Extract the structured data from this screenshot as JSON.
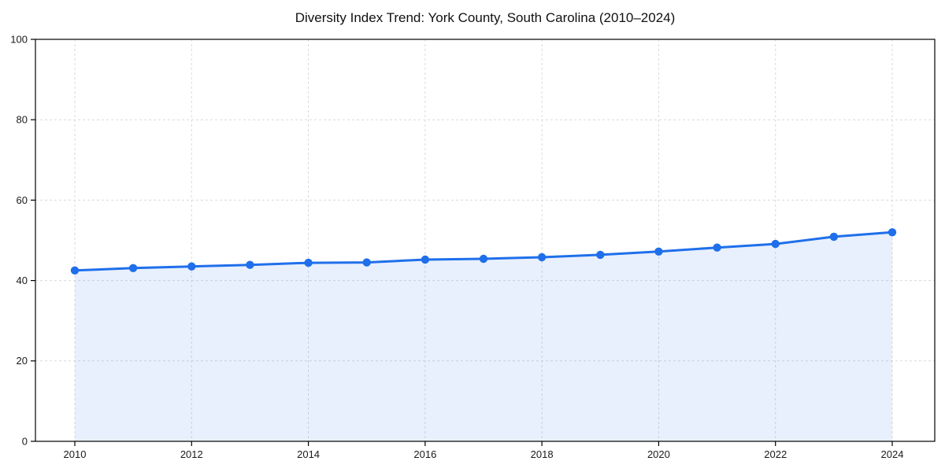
{
  "page": {
    "background": "#ffffff"
  },
  "chart_data": {
    "type": "area",
    "title": "Diversity Index Trend: York County, South Carolina (2010–2024)",
    "x": [
      2010,
      2011,
      2012,
      2013,
      2014,
      2015,
      2016,
      2017,
      2018,
      2019,
      2020,
      2021,
      2022,
      2023,
      2024
    ],
    "series": [
      {
        "name": "Diversity Index",
        "values": [
          42.5,
          43.1,
          43.5,
          43.9,
          44.4,
          44.5,
          45.2,
          45.4,
          45.8,
          46.4,
          47.2,
          48.2,
          49.1,
          50.9,
          52.0
        ]
      }
    ],
    "xlabel": "",
    "ylabel": "",
    "xticks": [
      2010,
      2012,
      2014,
      2016,
      2018,
      2020,
      2022,
      2024
    ],
    "yticks": [
      0,
      20,
      40,
      60,
      80,
      100
    ],
    "ylim": [
      0,
      100
    ],
    "grid": true,
    "legend_position": "none",
    "colors": {
      "line": "#1f6feb",
      "marker": "#1f6feb",
      "fill": "rgba(31,111,235,0.10)",
      "grid": "#dadada",
      "axis": "#000000",
      "text": "#1a1a1a"
    }
  }
}
